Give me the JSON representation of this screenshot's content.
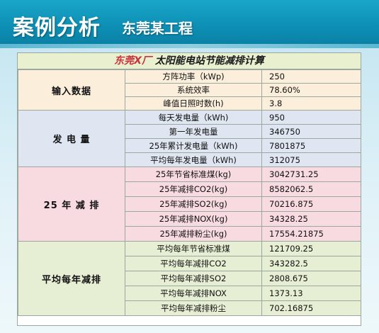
{
  "header": {
    "title": "案例分析",
    "subtitle": "东莞某工程"
  },
  "table": {
    "title_highlight": "东莞X厂",
    "title_rest": " 太阳能电站节能减排计算",
    "groups": [
      {
        "label": "输入数据",
        "rows": [
          {
            "label": "方阵功率（kWp)",
            "value": "250"
          },
          {
            "label": "系统效率",
            "value": "78.60%"
          },
          {
            "label": "峰值日照时数(h)",
            "value": "3.8"
          }
        ]
      },
      {
        "label": "发 电 量",
        "rows": [
          {
            "label": "每天发电量（kWh)",
            "value": "950"
          },
          {
            "label": "第一年发电量",
            "value": "346750"
          },
          {
            "label": "25年累计发电量（kWh)",
            "value": "7801875"
          },
          {
            "label": "平均每年发电量（kWh)",
            "value": "312075"
          }
        ]
      },
      {
        "label": "25 年 减 排",
        "rows": [
          {
            "label": "25年节省标准煤(kg)",
            "value": "3042731.25"
          },
          {
            "label": "25年减排CO2(kg)",
            "value": "8582062.5"
          },
          {
            "label": "25年减排SO2(kg)",
            "value": "70216.875"
          },
          {
            "label": "25年减排NOX(kg)",
            "value": "34328.25"
          },
          {
            "label": "25年减排粉尘(kg)",
            "value": "17554.21875"
          }
        ]
      },
      {
        "label": "平均每年减排",
        "rows": [
          {
            "label": "平均每年节省标准煤",
            "value": "121709.25"
          },
          {
            "label": "平均每年减排CO2",
            "value": "343282.5"
          },
          {
            "label": "平均每年减排SO2",
            "value": "2808.675"
          },
          {
            "label": "平均每年减排NOX",
            "value": "1373.13"
          },
          {
            "label": "平均每年减排粉尘",
            "value": "702.16875"
          }
        ]
      }
    ]
  }
}
